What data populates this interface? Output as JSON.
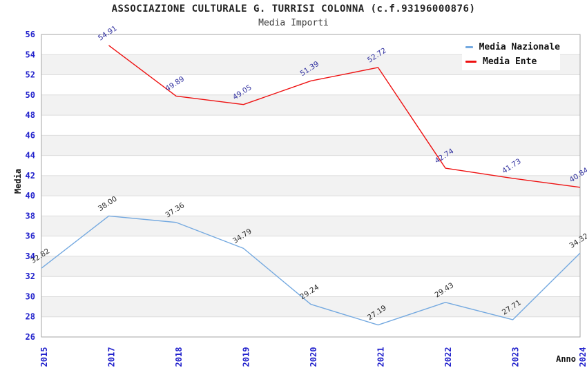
{
  "chart_data": {
    "type": "line",
    "title": "ASSOCIAZIONE CULTURALE G. TURRISI COLONNA (c.f.93196000876)",
    "subtitle": "Media Importi",
    "xlabel": "Anno",
    "ylabel": "Media",
    "categories": [
      "2015",
      "2017",
      "2018",
      "2019",
      "2020",
      "2021",
      "2022",
      "2023",
      "2024"
    ],
    "ylim": [
      26,
      56
    ],
    "ytick_step": 2,
    "grid": true,
    "plot_bands_alternating": true,
    "legend_position": "top-right",
    "series": [
      {
        "name": "Media Nazionale",
        "color": "#74a9e0",
        "label_color": "#2b2b2b",
        "values": [
          32.82,
          38.0,
          37.36,
          34.79,
          29.24,
          27.19,
          29.43,
          27.71,
          34.32
        ],
        "point_labels": [
          "32.82",
          "38.00",
          "37.36",
          "34.79",
          "29.24",
          "27.19",
          "29.43",
          "27.71",
          "34.32"
        ]
      },
      {
        "name": "Media Ente",
        "color": "#ee1111",
        "label_color": "#3333a0",
        "values": [
          null,
          54.91,
          49.89,
          49.05,
          51.39,
          52.72,
          42.74,
          41.73,
          40.84
        ],
        "point_labels": [
          null,
          "54.91",
          "49.89",
          "49.05",
          "51.39",
          "52.72",
          "42.74",
          "41.73",
          "40.84"
        ]
      }
    ],
    "colors": {
      "tick_label": "#2222cc",
      "band": "#f2f2f2",
      "gridline": "#dcdcdc",
      "frame": "#a6a6a6",
      "background": "#ffffff"
    }
  }
}
